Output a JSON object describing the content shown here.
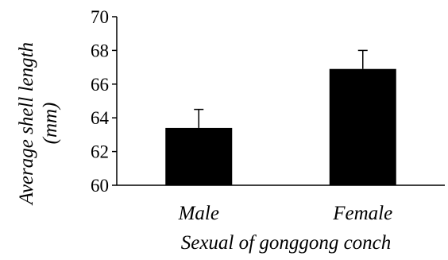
{
  "chart_data": {
    "type": "bar",
    "title": "",
    "xlabel": "Sexual of gonggong conch",
    "ylabel_lines": [
      "Average shell length",
      "(mm)"
    ],
    "categories": [
      "Male",
      "Female"
    ],
    "values": [
      63.4,
      66.9
    ],
    "error_upper": [
      64.5,
      68.0
    ],
    "ylim": [
      60,
      70
    ],
    "yticks": [
      60,
      62,
      64,
      66,
      68,
      70
    ],
    "grid": false,
    "legend": "none",
    "bar_color": "#000000"
  }
}
